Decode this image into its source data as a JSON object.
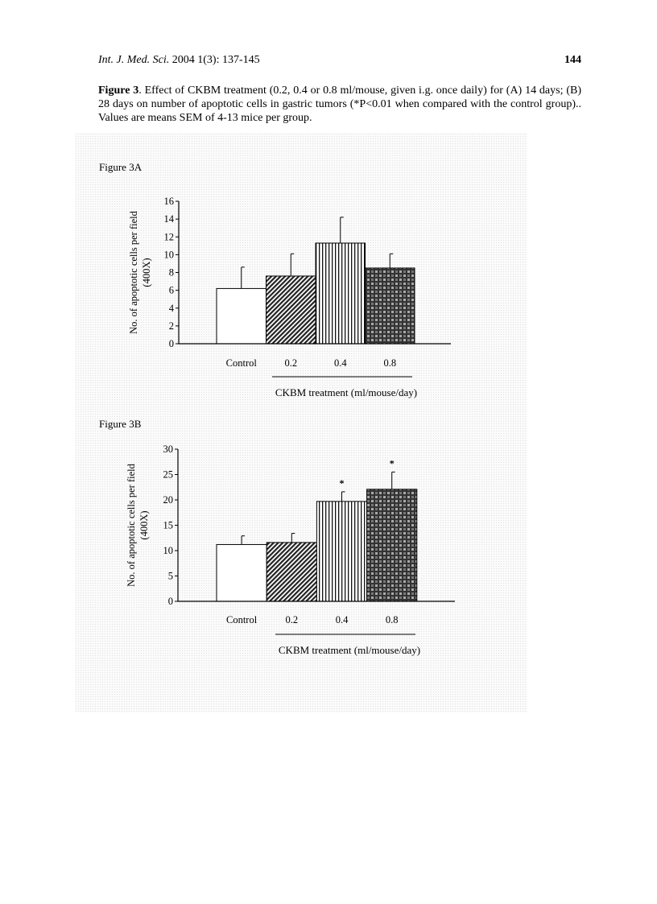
{
  "header": {
    "journal": "Int. J. Med. Sci.",
    "citation": "2004 1(3): 137-145",
    "page_number": "144"
  },
  "caption": {
    "label": "Figure 3",
    "text": ". Effect of CKBM treatment (0.2, 0.4 or 0.8 ml/mouse, given i.g. once daily) for (A) 14 days; (B) 28 days on number of apoptotic cells in gastric tumors (*P<0.01 when compared with the control group).. Values are means    SEM of 4-13 mice per group."
  },
  "chart_data": [
    {
      "type": "bar",
      "title": "Figure 3A",
      "categories": [
        "Control",
        "0.2",
        "0.4",
        "0.8"
      ],
      "values": [
        6.2,
        7.6,
        11.3,
        8.5
      ],
      "errors": [
        2.4,
        2.5,
        2.9,
        1.6
      ],
      "significant": [
        false,
        false,
        false,
        false
      ],
      "ylabel": "No. of apoptotic cells per field (400X)",
      "ylabel_lines": [
        "No. of apoptotic cells per field",
        "(400X)"
      ],
      "xlabel": "CKBM treatment (ml/mouse/day)",
      "ylim": [
        0,
        16
      ],
      "yticks": [
        0,
        2,
        4,
        6,
        8,
        10,
        12,
        14,
        16
      ],
      "patterns": [
        "white",
        "diagonal-hatch",
        "vertical-lines",
        "checker-dots"
      ],
      "grid": false
    },
    {
      "type": "bar",
      "title": "Figure 3B",
      "categories": [
        "Control",
        "0.2",
        "0.4",
        "0.8"
      ],
      "values": [
        11.2,
        11.6,
        19.7,
        22.1
      ],
      "errors": [
        1.7,
        1.8,
        1.9,
        3.4
      ],
      "significant": [
        false,
        false,
        true,
        true
      ],
      "significance_marker": "*",
      "ylabel": "No. of apoptotic cells per field (400X)",
      "ylabel_lines": [
        "No. of apoptotic cells per field",
        "(400X)"
      ],
      "xlabel": "CKBM treatment (ml/mouse/day)",
      "ylim": [
        0,
        30
      ],
      "yticks": [
        0,
        5,
        10,
        15,
        20,
        25,
        30
      ],
      "patterns": [
        "white",
        "diagonal-hatch",
        "vertical-lines",
        "checker-dots"
      ],
      "grid": false
    }
  ]
}
